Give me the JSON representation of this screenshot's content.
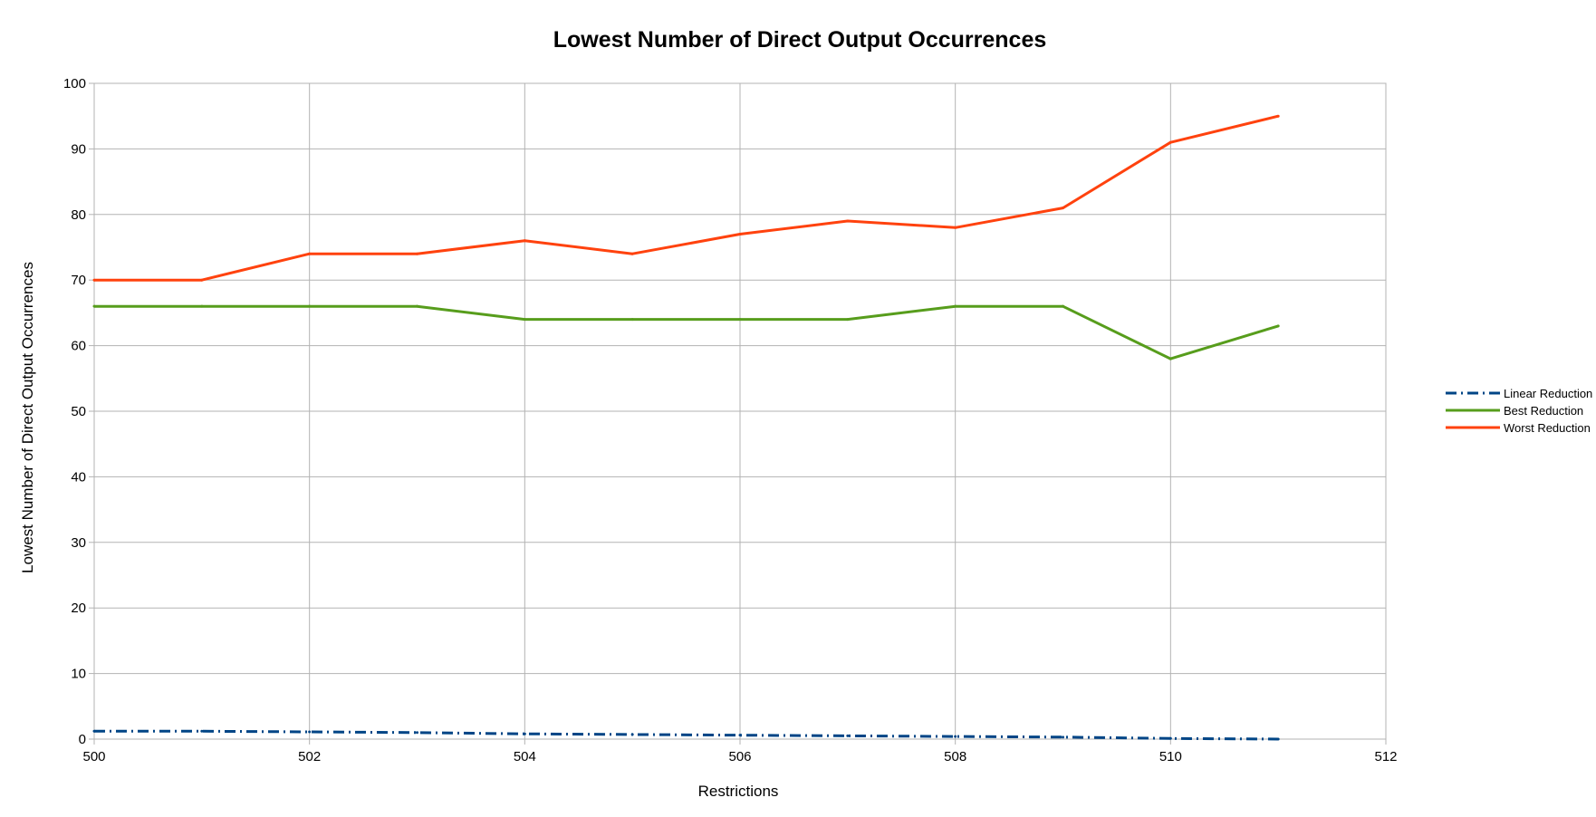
{
  "chart_data": {
    "type": "line",
    "title": "Lowest Number of Direct Output Occurrences",
    "xlabel": "Restrictions",
    "ylabel": "Lowest Number of Direct Output Occurrences",
    "xlim": [
      500,
      512
    ],
    "ylim": [
      0,
      100
    ],
    "x_ticks": [
      500,
      502,
      504,
      506,
      508,
      510,
      512
    ],
    "y_ticks": [
      0,
      10,
      20,
      30,
      40,
      50,
      60,
      70,
      80,
      90,
      100
    ],
    "x_tick_labels": [
      "500",
      "502",
      "504",
      "506",
      "508",
      "510",
      "512"
    ],
    "y_tick_labels": [
      "0",
      "10",
      "20",
      "30",
      "40",
      "50",
      "60",
      "70",
      "80",
      "90",
      "100"
    ],
    "grid": true,
    "legend_position": "right",
    "x": [
      500,
      501,
      502,
      503,
      504,
      505,
      506,
      507,
      508,
      509,
      510,
      511
    ],
    "series": [
      {
        "name": "Linear Reduction",
        "color": "#004586",
        "style": "dash-dot",
        "values": [
          1.2,
          1.2,
          1.1,
          1.0,
          0.8,
          0.7,
          0.6,
          0.5,
          0.4,
          0.3,
          0.1,
          0.0
        ]
      },
      {
        "name": "Best Reduction",
        "color": "#579d1c",
        "style": "solid",
        "values": [
          66,
          66,
          66,
          66,
          64,
          64,
          64,
          64,
          66,
          66,
          58,
          63
        ]
      },
      {
        "name": "Worst Reduction",
        "color": "#ff420e",
        "style": "solid",
        "values": [
          70,
          70,
          74,
          74,
          76,
          74,
          77,
          79,
          78,
          81,
          91,
          95
        ]
      }
    ]
  }
}
